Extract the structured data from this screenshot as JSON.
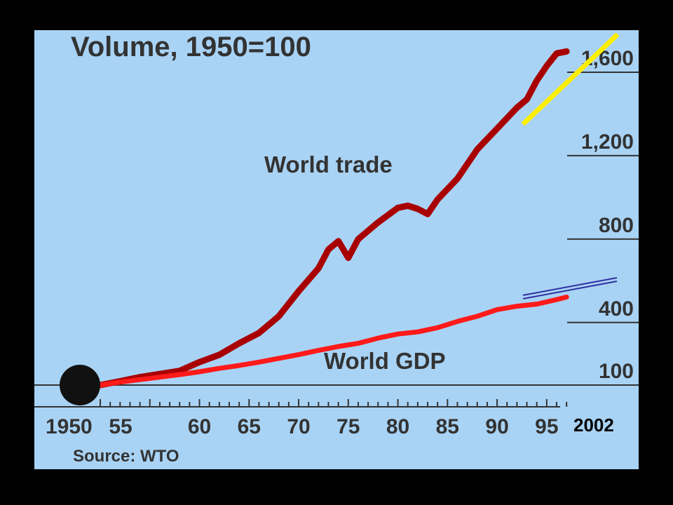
{
  "chart_data": {
    "type": "line",
    "title": "Volume, 1950=100",
    "source": "Source: WTO",
    "x_ticks": [
      {
        "x": 1950,
        "label": "1950"
      },
      {
        "x": 1955,
        "label": "55"
      },
      {
        "x": 1960,
        "label": "60"
      },
      {
        "x": 1965,
        "label": "65"
      },
      {
        "x": 1970,
        "label": "70"
      },
      {
        "x": 1975,
        "label": "75"
      },
      {
        "x": 1980,
        "label": "80"
      },
      {
        "x": 1985,
        "label": "85"
      },
      {
        "x": 1990,
        "label": "90"
      },
      {
        "x": 1995,
        "label": "95"
      }
    ],
    "y_ticks": [
      100,
      400,
      800,
      1200,
      1600
    ],
    "y_tick_labels": [
      "100",
      "400",
      "800",
      "1,200",
      "1,600"
    ],
    "xlim": [
      1950,
      1996
    ],
    "ylim": [
      100,
      1600
    ],
    "series": [
      {
        "name": "World trade",
        "color": "#a80000",
        "x": [
          1950,
          1952,
          1954,
          1956,
          1958,
          1960,
          1962,
          1964,
          1966,
          1968,
          1970,
          1972,
          1973,
          1974,
          1975,
          1976,
          1978,
          1980,
          1981,
          1982,
          1983,
          1984,
          1986,
          1988,
          1990,
          1992,
          1993,
          1994,
          1995,
          1996,
          1997
        ],
        "values": [
          100,
          118,
          138,
          153,
          168,
          210,
          245,
          300,
          350,
          430,
          550,
          660,
          750,
          790,
          710,
          800,
          880,
          950,
          960,
          945,
          920,
          990,
          1090,
          1230,
          1330,
          1430,
          1470,
          1560,
          1630,
          1690,
          1700
        ]
      },
      {
        "name": "World GDP",
        "color": "#ff1a1a",
        "x": [
          1950,
          1952,
          1954,
          1956,
          1958,
          1960,
          1962,
          1964,
          1966,
          1968,
          1970,
          1972,
          1974,
          1976,
          1978,
          1980,
          1982,
          1984,
          1986,
          1988,
          1990,
          1992,
          1994,
          1996,
          1997
        ],
        "values": [
          100,
          114,
          126,
          138,
          150,
          164,
          180,
          194,
          210,
          228,
          246,
          266,
          285,
          300,
          325,
          345,
          355,
          375,
          405,
          430,
          462,
          478,
          488,
          510,
          522
        ]
      }
    ],
    "annotations": {
      "year_label": "2002",
      "yellow_extension_color": "#ffee00",
      "blue_extension_color": "#3030a0"
    }
  }
}
